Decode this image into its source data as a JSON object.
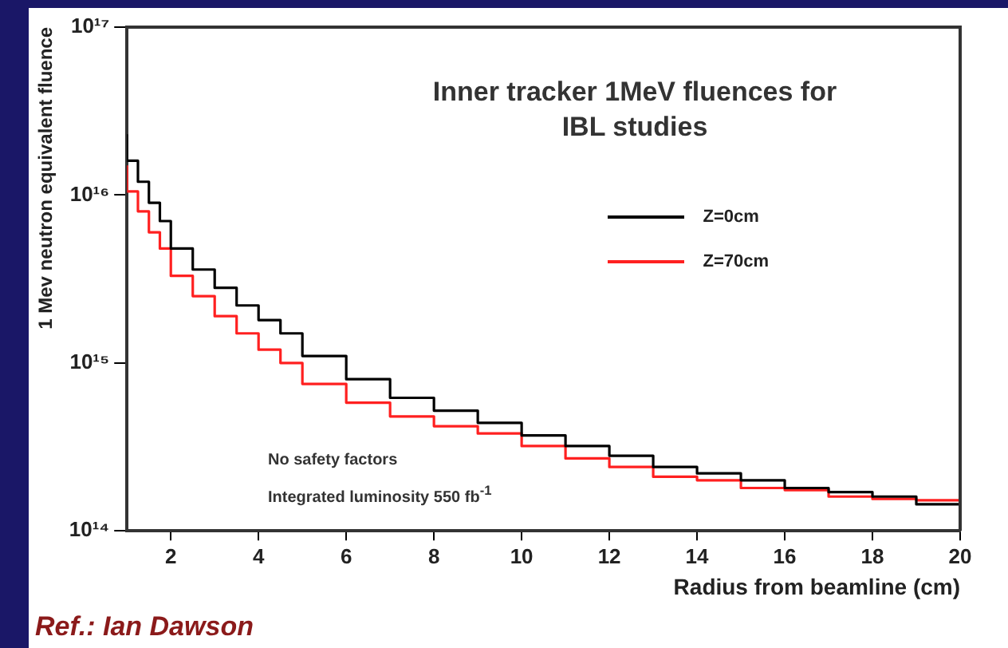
{
  "chart_data": {
    "type": "step",
    "title": "Inner tracker 1MeV fluences for IBL studies",
    "xlabel": "Radius from beamline (cm)",
    "ylabel": "1 Mev neutron equivalent fluence",
    "x": [
      1,
      1.25,
      1.5,
      1.75,
      2,
      2.5,
      3,
      3.5,
      4,
      4.5,
      5,
      6,
      7,
      8,
      9,
      10,
      11,
      12,
      13,
      14,
      15,
      16,
      17,
      18,
      19,
      20
    ],
    "series": [
      {
        "name": "Z=0cm",
        "color": "#000000",
        "values": [
          2.3e+16,
          1.6e+16,
          1.2e+16,
          9000000000000000.0,
          7000000000000000.0,
          4800000000000000.0,
          3600000000000000.0,
          2800000000000000.0,
          2200000000000000.0,
          1800000000000000.0,
          1500000000000000.0,
          1100000000000000.0,
          800000000000000.0,
          620000000000000.0,
          520000000000000.0,
          440000000000000.0,
          370000000000000.0,
          320000000000000.0,
          280000000000000.0,
          240000000000000.0,
          220000000000000.0,
          200000000000000.0,
          180000000000000.0,
          170000000000000.0,
          160000000000000.0,
          144000000000000.0
        ]
      },
      {
        "name": "Z=70cm",
        "color": "#ff2020",
        "values": [
          1.5e+16,
          1.05e+16,
          8000000000000000.0,
          6000000000000000.0,
          4800000000000000.0,
          3300000000000000.0,
          2500000000000000.0,
          1900000000000000.0,
          1500000000000000.0,
          1200000000000000.0,
          1000000000000000.0,
          750000000000000.0,
          580000000000000.0,
          480000000000000.0,
          420000000000000.0,
          380000000000000.0,
          320000000000000.0,
          270000000000000.0,
          240000000000000.0,
          210000000000000.0,
          200000000000000.0,
          180000000000000.0,
          175000000000000.0,
          160000000000000.0,
          155000000000000.0,
          152000000000000.0
        ]
      }
    ],
    "xlim": [
      1,
      20
    ],
    "xticks": [
      2,
      4,
      6,
      8,
      10,
      12,
      14,
      16,
      18,
      20
    ],
    "ylim": [
      100000000000000.0,
      1e+17
    ],
    "yticks": [
      {
        "value": 100000000000000.0,
        "label": "10¹⁴"
      },
      {
        "value": 1000000000000000.0,
        "label": "10¹⁵"
      },
      {
        "value": 1e+16,
        "label": "10¹⁶"
      },
      {
        "value": 1e+17,
        "label": "10¹⁷"
      }
    ],
    "log": "y",
    "grid": false,
    "legend": "top right",
    "marker": "none",
    "line_style": "solid",
    "annotations": [
      "No safety factors",
      "Integrated luminosity 550 fb$^{-1}$",
      "Ref.: Ian Dawson"
    ]
  }
}
